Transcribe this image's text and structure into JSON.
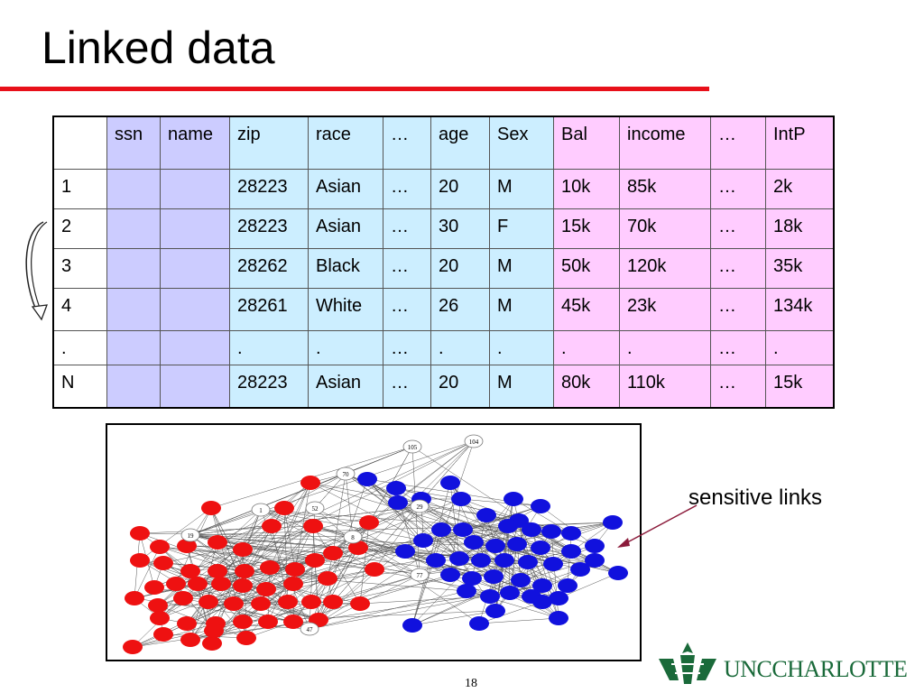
{
  "slide": {
    "title": "Linked data",
    "page_number": "18",
    "sensitive_label": "sensitive links",
    "logo_text": "UNCCHARLOTTE"
  },
  "table": {
    "headers": [
      "",
      "ssn",
      "name",
      "zip",
      "race",
      "…",
      "age",
      "Sex",
      "Bal",
      "income",
      "…",
      "IntP"
    ],
    "rows": [
      [
        "1",
        "",
        "",
        "28223",
        "Asian",
        "…",
        "20",
        "M",
        "10k",
        "85k",
        "…",
        "2k"
      ],
      [
        "2",
        "",
        "",
        "28223",
        "Asian",
        "…",
        "30",
        "F",
        "15k",
        "70k",
        "…",
        "18k"
      ],
      [
        "3",
        "",
        "",
        "28262",
        "Black",
        "…",
        "20",
        "M",
        "50k",
        "120k",
        "…",
        "35k"
      ],
      [
        "4",
        "",
        "",
        "28261",
        "White",
        "…",
        "26",
        "M",
        "45k",
        "23k",
        "…",
        "134k"
      ],
      [
        ".",
        "",
        "",
        ".",
        ".",
        "…",
        ".",
        ".",
        ".",
        ".",
        "…",
        "."
      ],
      [
        "N",
        "",
        "",
        "28223",
        "Asian",
        "…",
        "20",
        "M",
        "80k",
        "110k",
        "…",
        "15k"
      ]
    ]
  },
  "graph": {
    "white_node_labels": [
      "105",
      "104",
      "70",
      "52",
      "1",
      "19",
      "8",
      "29",
      "77",
      "47"
    ]
  },
  "colors": {
    "title_rule": "#e8101a",
    "identifier_column": "#ccccff",
    "quasi_identifier_column": "#cceeff",
    "sensitive_column": "#ffccff",
    "red_nodes": "#ee1111",
    "blue_nodes": "#1111dd",
    "logo": "#1a6a3a"
  }
}
